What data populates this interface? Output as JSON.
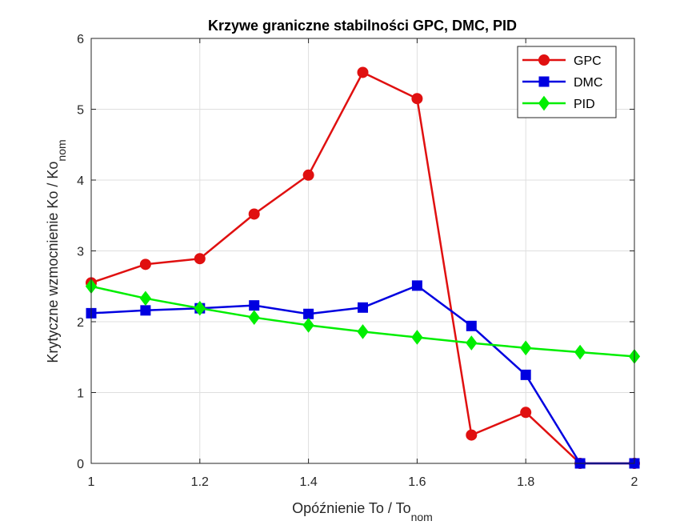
{
  "chart_data": {
    "type": "line",
    "title": "Krzywe graniczne stabilności GPC, DMC, PID",
    "xlabel": "Opóźnienie To / To",
    "xlabel_sub": "nom",
    "ylabel": "Krytyczne wzmocnienie Ko / Ko",
    "ylabel_sub": "nom",
    "xlim": [
      1,
      2
    ],
    "ylim": [
      0,
      6
    ],
    "xticks": [
      1,
      1.2,
      1.4,
      1.6,
      1.8,
      2
    ],
    "yticks": [
      0,
      1,
      2,
      3,
      4,
      5,
      6
    ],
    "xtick_labels": [
      "1",
      "1.2",
      "1.4",
      "1.6",
      "1.8",
      "2"
    ],
    "ytick_labels": [
      "0",
      "1",
      "2",
      "3",
      "4",
      "5",
      "6"
    ],
    "grid": true,
    "legend_position": "top-right",
    "x": [
      1.0,
      1.1,
      1.2,
      1.3,
      1.4,
      1.5,
      1.6,
      1.7,
      1.8,
      1.9,
      2.0
    ],
    "series": [
      {
        "name": "GPC",
        "color": "#e01010",
        "marker": "circle",
        "values": [
          2.55,
          2.81,
          2.89,
          3.52,
          4.07,
          5.52,
          5.15,
          0.4,
          0.72,
          0.0,
          0.0
        ]
      },
      {
        "name": "DMC",
        "color": "#0000e0",
        "marker": "square",
        "values": [
          2.12,
          2.16,
          2.19,
          2.23,
          2.11,
          2.2,
          2.51,
          1.94,
          1.25,
          0.0,
          0.0
        ]
      },
      {
        "name": "PID",
        "color": "#00ee00",
        "marker": "diamond",
        "values": [
          2.5,
          2.33,
          2.19,
          2.06,
          1.95,
          1.86,
          1.78,
          1.7,
          1.63,
          1.57,
          1.51
        ]
      }
    ]
  }
}
